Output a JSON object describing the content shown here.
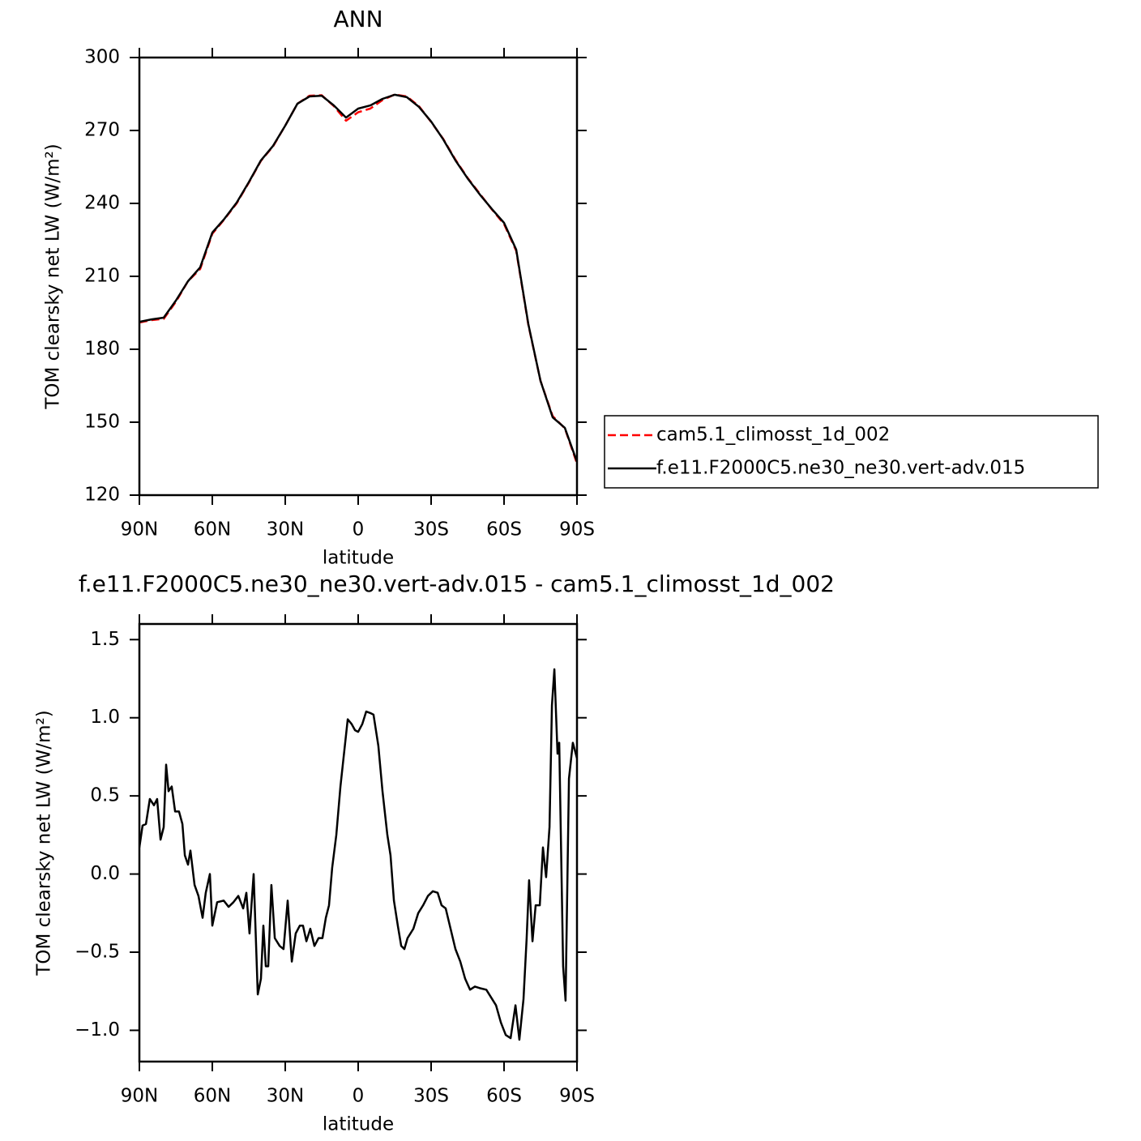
{
  "chart_data": [
    {
      "type": "line",
      "title": "ANN",
      "xlabel": "latitude",
      "ylabel": "TOM clearsky net LW (W/m²)",
      "xlim": [
        90,
        -90
      ],
      "xticks": [
        {
          "value": 90,
          "label": "90N"
        },
        {
          "value": 60,
          "label": "60N"
        },
        {
          "value": 30,
          "label": "30N"
        },
        0,
        {
          "value": -30,
          "label": "30S"
        },
        {
          "value": -60,
          "label": "60S"
        },
        {
          "value": -90,
          "label": "90S"
        }
      ],
      "ylim": [
        120,
        300
      ],
      "yticks": [
        120,
        150,
        180,
        210,
        240,
        270,
        300
      ],
      "legend": "right",
      "x": [
        90,
        85,
        80,
        75,
        70,
        65,
        60,
        55,
        50,
        45,
        40,
        35,
        30,
        25,
        20,
        15,
        10,
        5,
        0,
        -5,
        -10,
        -15,
        -20,
        -25,
        -30,
        -35,
        -40,
        -45,
        -50,
        -55,
        -60,
        -65,
        -70,
        -75,
        -80,
        -85,
        -90
      ],
      "series": [
        {
          "name": "cam5.1_climosst_1d_002",
          "color": "#ff0000",
          "line_style": "dashed",
          "values": [
            191,
            192,
            192.5,
            199.5,
            208,
            213,
            227.5,
            233.5,
            240,
            248.5,
            257.5,
            263.5,
            272,
            281,
            284.3,
            284.5,
            280,
            274,
            277.5,
            279,
            282.5,
            284.8,
            284,
            280,
            273.5,
            266.5,
            258,
            250.5,
            244,
            237.5,
            231.5,
            220.5,
            190,
            167,
            152.5,
            147.5,
            133
          ]
        },
        {
          "name": "f.e11.F2000C5.ne30_ne30.vert-adv.015",
          "color": "#000000",
          "line_style": "solid",
          "values": [
            191.3,
            192.3,
            193,
            200,
            208,
            213.7,
            228,
            233.7,
            240.3,
            248.7,
            257.7,
            263.7,
            272,
            281,
            284,
            284.3,
            280.3,
            275.3,
            279,
            280.3,
            283,
            284.7,
            283.7,
            279.7,
            273.7,
            266.3,
            257.7,
            250.3,
            243.7,
            237.7,
            232,
            221,
            190.3,
            167,
            152,
            147.7,
            133.7
          ]
        }
      ]
    },
    {
      "type": "line",
      "title": "f.e11.F2000C5.ne30_ne30.vert-adv.015 - cam5.1_climosst_1d_002",
      "xlabel": "latitude",
      "ylabel": "TOM clearsky net LW (W/m²)",
      "xlim": [
        90,
        -90
      ],
      "xticks": [
        {
          "value": 90,
          "label": "90N"
        },
        {
          "value": 60,
          "label": "60N"
        },
        {
          "value": 30,
          "label": "30N"
        },
        0,
        {
          "value": -30,
          "label": "30S"
        },
        {
          "value": -60,
          "label": "60S"
        },
        {
          "value": -90,
          "label": "90S"
        }
      ],
      "ylim": [
        -1.2,
        1.6
      ],
      "yticks": [
        {
          "value": -1,
          "label": "−1.0"
        },
        {
          "value": -0.5,
          "label": "−0.5"
        },
        {
          "value": 0,
          "label": "0.0"
        },
        0.5,
        {
          "value": 1,
          "label": "1.0"
        },
        1.5
      ],
      "x": [
        90,
        88.7,
        87.3,
        85.7,
        84,
        82.7,
        81.3,
        80,
        79,
        78,
        76.7,
        75.3,
        73.7,
        72.3,
        71.3,
        70,
        69,
        67.3,
        65.7,
        64,
        62.7,
        61,
        60,
        58,
        55.3,
        53.3,
        51.3,
        49.3,
        47.3,
        46,
        44.7,
        43,
        41.3,
        40,
        39,
        38,
        37,
        35.7,
        34.3,
        32.3,
        30.7,
        29,
        27.3,
        25.7,
        24,
        22.7,
        21.3,
        19.7,
        18,
        16.3,
        14.7,
        13.3,
        12,
        10.7,
        9,
        7.3,
        5.7,
        4.3,
        2.7,
        1.3,
        0,
        -1.7,
        -3.3,
        -5,
        -6.3,
        -8.3,
        -10,
        -12,
        -13.3,
        -14.7,
        -16.3,
        -17.7,
        -19,
        -20.3,
        -22.7,
        -24.7,
        -26.7,
        -28.7,
        -30.7,
        -32.7,
        -34.3,
        -36,
        -38,
        -40,
        -42,
        -44,
        -46,
        -48,
        -50,
        -52.7,
        -54.7,
        -56.7,
        -58.7,
        -60.7,
        -62.7,
        -64.7,
        -66.3,
        -68,
        -69.3,
        -70.3,
        -71.7,
        -73,
        -74.7,
        -76,
        -77.3,
        -78.7,
        -79.7,
        -80.7,
        -82,
        -82.7,
        -84.3,
        -85.3,
        -86.7,
        -88.3,
        -90
      ],
      "series": [
        {
          "name": "f.e11.F2000C5.ne30_ne30.vert-adv.015 - cam5.1_climosst_1d_002",
          "color": "#000000",
          "values": [
            0.17,
            0.31,
            0.32,
            0.48,
            0.44,
            0.48,
            0.22,
            0.3,
            0.7,
            0.53,
            0.56,
            0.4,
            0.4,
            0.32,
            0.12,
            0.06,
            0.15,
            -0.07,
            -0.14,
            -0.28,
            -0.12,
            0,
            -0.33,
            -0.18,
            -0.17,
            -0.21,
            -0.18,
            -0.14,
            -0.22,
            -0.12,
            -0.38,
            0,
            -0.77,
            -0.67,
            -0.33,
            -0.59,
            -0.59,
            -0.07,
            -0.41,
            -0.46,
            -0.48,
            -0.17,
            -0.56,
            -0.38,
            -0.33,
            -0.33,
            -0.43,
            -0.35,
            -0.46,
            -0.41,
            -0.41,
            -0.28,
            -0.2,
            0.04,
            0.25,
            0.56,
            0.79,
            0.99,
            0.96,
            0.92,
            0.91,
            0.96,
            1.04,
            1.03,
            1.02,
            0.82,
            0.53,
            0.25,
            0.12,
            -0.17,
            -0.33,
            -0.46,
            -0.48,
            -0.41,
            -0.35,
            -0.25,
            -0.2,
            -0.14,
            -0.11,
            -0.12,
            -0.2,
            -0.22,
            -0.35,
            -0.48,
            -0.56,
            -0.67,
            -0.74,
            -0.72,
            -0.73,
            -0.74,
            -0.79,
            -0.84,
            -0.95,
            -1.03,
            -1.05,
            -0.84,
            -1.06,
            -0.8,
            -0.41,
            -0.04,
            -0.43,
            -0.2,
            -0.2,
            0.17,
            -0.02,
            0.3,
            1.08,
            1.31,
            0.77,
            0.84,
            -0.59,
            -0.81,
            0.61,
            0.84,
            0.74
          ]
        }
      ]
    }
  ]
}
